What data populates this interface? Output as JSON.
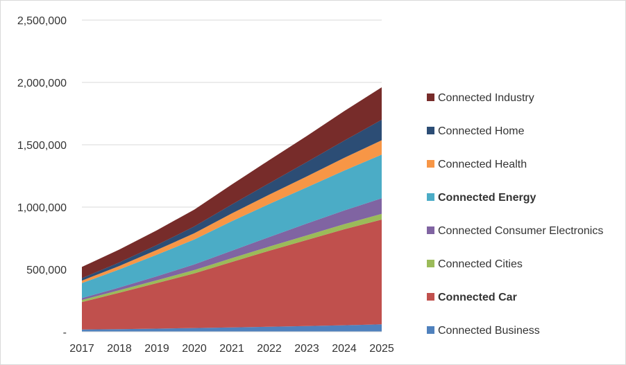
{
  "chart_data": {
    "type": "area",
    "stacked": true,
    "title": "",
    "xlabel": "",
    "ylabel": "",
    "x": [
      "2017",
      "2018",
      "2019",
      "2020",
      "2021",
      "2022",
      "2023",
      "2024",
      "2025"
    ],
    "ylim": [
      0,
      2500000
    ],
    "y_ticks": [
      0,
      500000,
      1000000,
      1500000,
      2000000,
      2500000
    ],
    "y_tick_labels": [
      "-",
      "500,000",
      "1,000,000",
      "1,500,000",
      "2,000,000",
      "2,500,000"
    ],
    "grid": "horizontal",
    "legend_position": "right",
    "series": [
      {
        "name": "Connected Business",
        "color": "#4f81bd",
        "bold": false,
        "values": [
          18000,
          21000,
          25000,
          30000,
          35000,
          40000,
          46000,
          52000,
          60000
        ]
      },
      {
        "name": "Connected Car",
        "color": "#c0504d",
        "bold": true,
        "values": [
          220000,
          292000,
          365000,
          438000,
          525000,
          610000,
          690000,
          770000,
          840000
        ]
      },
      {
        "name": "Connected Cities",
        "color": "#9bbb59",
        "bold": false,
        "values": [
          17000,
          20000,
          23000,
          27000,
          30000,
          33000,
          37000,
          41000,
          46000
        ]
      },
      {
        "name": "Connected Consumer Electronics",
        "color": "#8064a2",
        "bold": false,
        "values": [
          15000,
          22000,
          32000,
          45000,
          60000,
          77000,
          95000,
          110000,
          125000
        ]
      },
      {
        "name": "Connected Energy",
        "color": "#4bacc6",
        "bold": true,
        "values": [
          120000,
          145000,
          173000,
          200000,
          237000,
          265000,
          290000,
          320000,
          350000
        ]
      },
      {
        "name": "Connected Health",
        "color": "#f79646",
        "bold": false,
        "values": [
          20000,
          28000,
          38000,
          50000,
          62000,
          75000,
          88000,
          102000,
          115000
        ]
      },
      {
        "name": "Connected Home",
        "color": "#2c4d75",
        "bold": false,
        "values": [
          20000,
          28000,
          40000,
          55000,
          72000,
          92000,
          115000,
          138000,
          165000
        ]
      },
      {
        "name": "Connected Industry",
        "color": "#772c2a",
        "bold": false,
        "values": [
          90000,
          104000,
          118000,
          135000,
          160000,
          185000,
          209000,
          237000,
          260000
        ]
      }
    ]
  }
}
